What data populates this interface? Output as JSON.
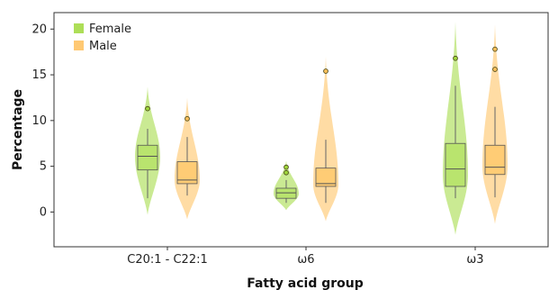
{
  "chart_data": {
    "type": "violin-box",
    "xlabel": "Fatty acid group",
    "ylabel": "Percentage",
    "ylim": [
      -3.8,
      21.8
    ],
    "yticks": [
      0,
      5,
      10,
      15,
      20
    ],
    "categories": [
      "C20:1 - C22:1",
      "ω6",
      "ω3"
    ],
    "legend_position": "top-left",
    "series": [
      {
        "name": "Female",
        "color": "#9fd83a",
        "box_color": "#b7e36a",
        "groups": [
          {
            "violin_min": -0.3,
            "violin_max": 13.7,
            "violin_peak": 6.0,
            "whisker_low": 1.5,
            "q1": 4.6,
            "median": 6.1,
            "q3": 7.3,
            "whisker_high": 9.1,
            "outliers": [
              11.3
            ]
          },
          {
            "violin_min": 0.2,
            "violin_max": 5.6,
            "violin_peak": 2.0,
            "whisker_low": 1.0,
            "q1": 1.5,
            "median": 2.1,
            "q3": 2.6,
            "whisker_high": 3.5,
            "outliers": [
              4.3,
              4.9
            ]
          },
          {
            "violin_min": -2.5,
            "violin_max": 20.8,
            "violin_peak": 4.0,
            "whisker_low": 1.5,
            "q1": 2.8,
            "median": 4.7,
            "q3": 7.5,
            "whisker_high": 13.8,
            "outliers": [
              16.8
            ]
          }
        ]
      },
      {
        "name": "Male",
        "color": "#ffc05a",
        "box_color": "#ffca70",
        "groups": [
          {
            "violin_min": -0.8,
            "violin_max": 12.5,
            "violin_peak": 3.5,
            "whisker_low": 1.8,
            "q1": 3.1,
            "median": 3.5,
            "q3": 5.5,
            "whisker_high": 8.2,
            "outliers": [
              10.2
            ]
          },
          {
            "violin_min": -1.0,
            "violin_max": 17.0,
            "violin_peak": 3.0,
            "whisker_low": 1.0,
            "q1": 2.8,
            "median": 3.1,
            "q3": 4.8,
            "whisker_high": 7.9,
            "outliers": [
              15.4
            ]
          },
          {
            "violin_min": -1.3,
            "violin_max": 20.5,
            "violin_peak": 5.0,
            "whisker_low": 1.6,
            "q1": 4.1,
            "median": 4.9,
            "q3": 7.3,
            "whisker_high": 11.5,
            "outliers": [
              15.6,
              17.8
            ]
          }
        ]
      }
    ]
  }
}
